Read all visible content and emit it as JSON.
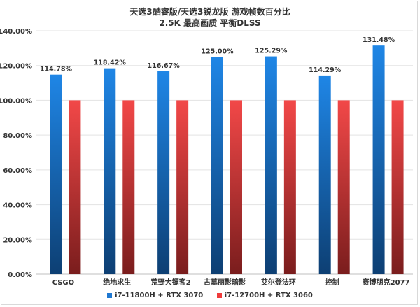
{
  "chart_data": {
    "type": "bar",
    "title": "天选3酷睿版/天选3锐龙版 游戏帧数百分比",
    "subtitle": "2.5K 最高画质 平衡DLSS",
    "categories": [
      "CSGO",
      "绝地求生",
      "荒野大镖客2",
      "古墓丽影暗影",
      "艾尔登法环",
      "控制",
      "赛博朋克2077"
    ],
    "series": [
      {
        "name": "i7-11800H + RTX 3070",
        "values": [
          114.78,
          118.42,
          116.67,
          125.0,
          125.29,
          114.29,
          131.48
        ],
        "labels": [
          "114.78%",
          "118.42%",
          "116.67%",
          "125.00%",
          "125.29%",
          "114.29%",
          "131.48%"
        ],
        "color": "#1f78d1"
      },
      {
        "name": "i7-12700H + RTX 3060",
        "values": [
          100,
          100,
          100,
          100,
          100,
          100,
          100
        ],
        "color": "#ef3b3b"
      }
    ],
    "ylim": [
      0,
      140
    ],
    "yticks": [
      "0.00%",
      "20.00%",
      "40.00%",
      "60.00%",
      "80.00%",
      "100.00%",
      "120.00%",
      "140.00%"
    ],
    "grid": true,
    "legend": "bottom"
  }
}
